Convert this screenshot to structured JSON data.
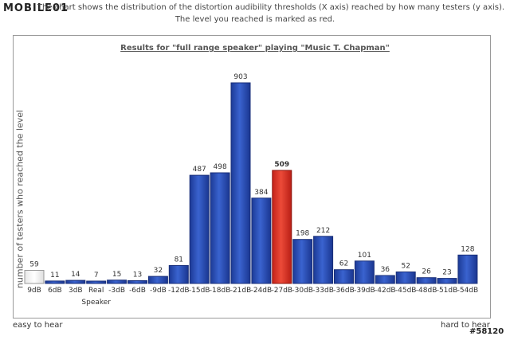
{
  "logo_text": "MOBILE01",
  "watermark": "#58120",
  "intro": {
    "line1": "The chart shows the distribution of the distortion audibility thresholds (X axis) reached by how many testers (y axis).",
    "line2": "The level you reached is marked as red."
  },
  "footer": {
    "easy": "easy to hear",
    "hard": "hard to hear"
  },
  "colors": {
    "bar": "#2a4fb8",
    "bar_top": "#5c80de",
    "highlight": "#e33a2c",
    "first_bar": "#f2f2f2"
  },
  "chart_data": {
    "type": "bar",
    "title": "Results for \"full range speaker\" playing \"Music T. Chapman\"",
    "ylabel": "number of testers who reached the level",
    "xlabel": "",
    "categories": [
      "9dB",
      "6dB",
      "3dB",
      "Real Speaker",
      "-3dB",
      "-6dB",
      "-9dB",
      "-12dB",
      "-15dB",
      "-18dB",
      "-21dB",
      "-24dB",
      "-27dB",
      "-30dB",
      "-33dB",
      "-36dB",
      "-39dB",
      "-42dB",
      "-45dB",
      "-48dB",
      "-51dB",
      "-54dB"
    ],
    "values": [
      59,
      11,
      14,
      7,
      15,
      13,
      32,
      81,
      487,
      498,
      903,
      384,
      509,
      198,
      212,
      62,
      101,
      36,
      52,
      26,
      23,
      128
    ],
    "highlight_category": "-27dB",
    "ylim": [
      0,
      903
    ],
    "grid": false,
    "legend": "none"
  }
}
